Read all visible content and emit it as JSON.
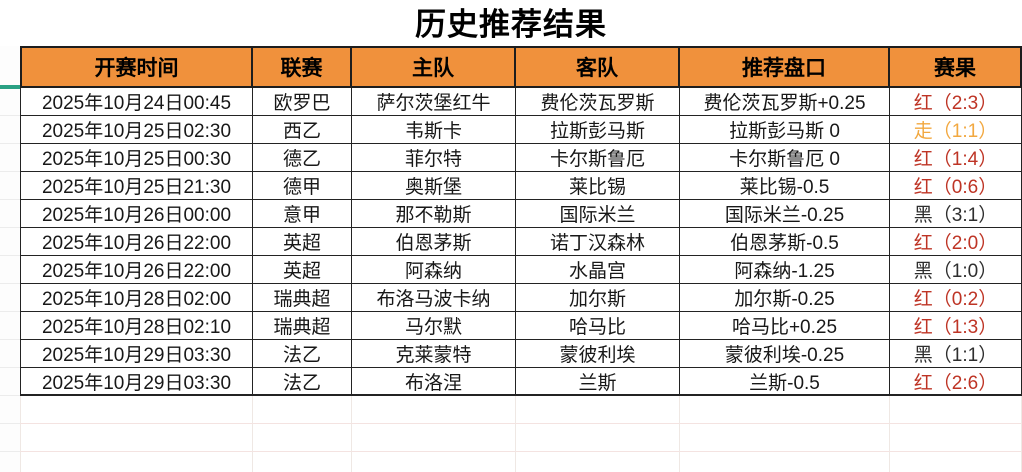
{
  "title": "历史推荐结果",
  "table": {
    "columns": [
      {
        "key": "time",
        "label": "开赛时间"
      },
      {
        "key": "league",
        "label": "联赛"
      },
      {
        "key": "home",
        "label": "主队"
      },
      {
        "key": "away",
        "label": "客队"
      },
      {
        "key": "handicap",
        "label": "推荐盘口"
      },
      {
        "key": "result",
        "label": "赛果"
      }
    ],
    "rows": [
      {
        "time": "2025年10月24日00:45",
        "league": "欧罗巴",
        "home": "萨尔茨堡红牛",
        "away": "费伦茨瓦罗斯",
        "handicap": "费伦茨瓦罗斯+0.25",
        "result": "红（2:3）",
        "result_type": "red"
      },
      {
        "time": "2025年10月25日02:30",
        "league": "西乙",
        "home": "韦斯卡",
        "away": "拉斯彭马斯",
        "handicap": "拉斯彭马斯 0",
        "result": "走（1:1）",
        "result_type": "push"
      },
      {
        "time": "2025年10月25日00:30",
        "league": "德乙",
        "home": "菲尔特",
        "away": "卡尔斯鲁厄",
        "handicap": "卡尔斯鲁厄 0",
        "result": "红（1:4）",
        "result_type": "red"
      },
      {
        "time": "2025年10月25日21:30",
        "league": "德甲",
        "home": "奥斯堡",
        "away": "莱比锡",
        "handicap": "莱比锡-0.5",
        "result": "红（0:6）",
        "result_type": "red"
      },
      {
        "time": "2025年10月26日00:00",
        "league": "意甲",
        "home": "那不勒斯",
        "away": "国际米兰",
        "handicap": "国际米兰-0.25",
        "result": "黑（3:1）",
        "result_type": "black"
      },
      {
        "time": "2025年10月26日22:00",
        "league": "英超",
        "home": "伯恩茅斯",
        "away": "诺丁汉森林",
        "handicap": "伯恩茅斯-0.5",
        "result": "红（2:0）",
        "result_type": "red"
      },
      {
        "time": "2025年10月26日22:00",
        "league": "英超",
        "home": "阿森纳",
        "away": "水晶宫",
        "handicap": "阿森纳-1.25",
        "result": "黑（1:0）",
        "result_type": "black"
      },
      {
        "time": "2025年10月28日02:00",
        "league": "瑞典超",
        "home": "布洛马波卡纳",
        "away": "加尔斯",
        "handicap": "加尔斯-0.25",
        "result": "红（0:2）",
        "result_type": "red"
      },
      {
        "time": "2025年10月28日02:10",
        "league": "瑞典超",
        "home": "马尔默",
        "away": "哈马比",
        "handicap": "哈马比+0.25",
        "result": "红（1:3）",
        "result_type": "red"
      },
      {
        "time": "2025年10月29日03:30",
        "league": "法乙",
        "home": "克莱蒙特",
        "away": "蒙彼利埃",
        "handicap": "蒙彼利埃-0.25",
        "result": "黑（1:1）",
        "result_type": "black"
      },
      {
        "time": "2025年10月29日03:30",
        "league": "法乙",
        "home": "布洛涅",
        "away": "兰斯",
        "handicap": "兰斯-0.5",
        "result": "红（2:6）",
        "result_type": "red"
      }
    ]
  },
  "colors": {
    "header_bg": "#F0913C",
    "result_red": "#BE3425",
    "result_push": "#F2A840",
    "result_black": "#2E2E2E",
    "freeze_indicator": "#2BA184",
    "empty_gridline_h": "#F4E3E1",
    "empty_gridline_v": "#EFE8E4"
  }
}
